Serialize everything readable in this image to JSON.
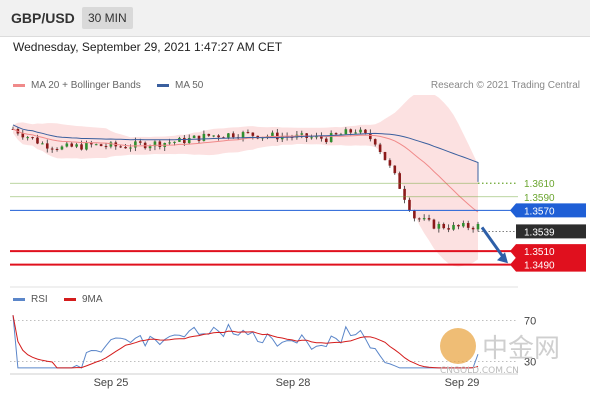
{
  "header": {
    "pair": "GBP/USD",
    "timeframe": "30 MIN"
  },
  "timestamp": "Wednesday, September 29, 2021 1:47:27 AM CET",
  "legend": {
    "bollinger": {
      "label": "MA 20 + Bollinger Bands",
      "color": "#f08a8a"
    },
    "ma50": {
      "label": "MA 50",
      "color": "#3a5f9e"
    }
  },
  "credit": "Research © 2021 Trading Central",
  "rsi_legend": {
    "rsi": {
      "label": "RSI",
      "color": "#5b86c9"
    },
    "ma9": {
      "label": "9MA",
      "color": "#d41c1c"
    }
  },
  "watermark": {
    "name": "中金网",
    "sub": "CNGOLD.COM.CN"
  },
  "chart_data": {
    "type": "candlestick",
    "price_axis": {
      "ylim": [
        1.346,
        1.374
      ]
    },
    "x_ticks": [
      "Sep 25",
      "Sep 28",
      "Sep 29"
    ],
    "levels": [
      {
        "label": "1.3610",
        "value": 1.361,
        "style": "green-dotted",
        "color": "#6aa52e"
      },
      {
        "label": "1.3590",
        "value": 1.359,
        "style": "green",
        "color": "#6aa52e"
      },
      {
        "label": "1.3570",
        "value": 1.357,
        "style": "blue",
        "color": "#1f5fd6"
      },
      {
        "label": "1.3539",
        "value": 1.3539,
        "style": "current",
        "color": "#2d2d2d"
      },
      {
        "label": "1.3510",
        "value": 1.351,
        "style": "red",
        "color": "#e0101e"
      },
      {
        "label": "1.3490",
        "value": 1.349,
        "style": "red",
        "color": "#e0101e"
      }
    ],
    "rsi_levels": [
      {
        "label": "70",
        "value": 70
      },
      {
        "label": "30",
        "value": 30
      }
    ]
  }
}
